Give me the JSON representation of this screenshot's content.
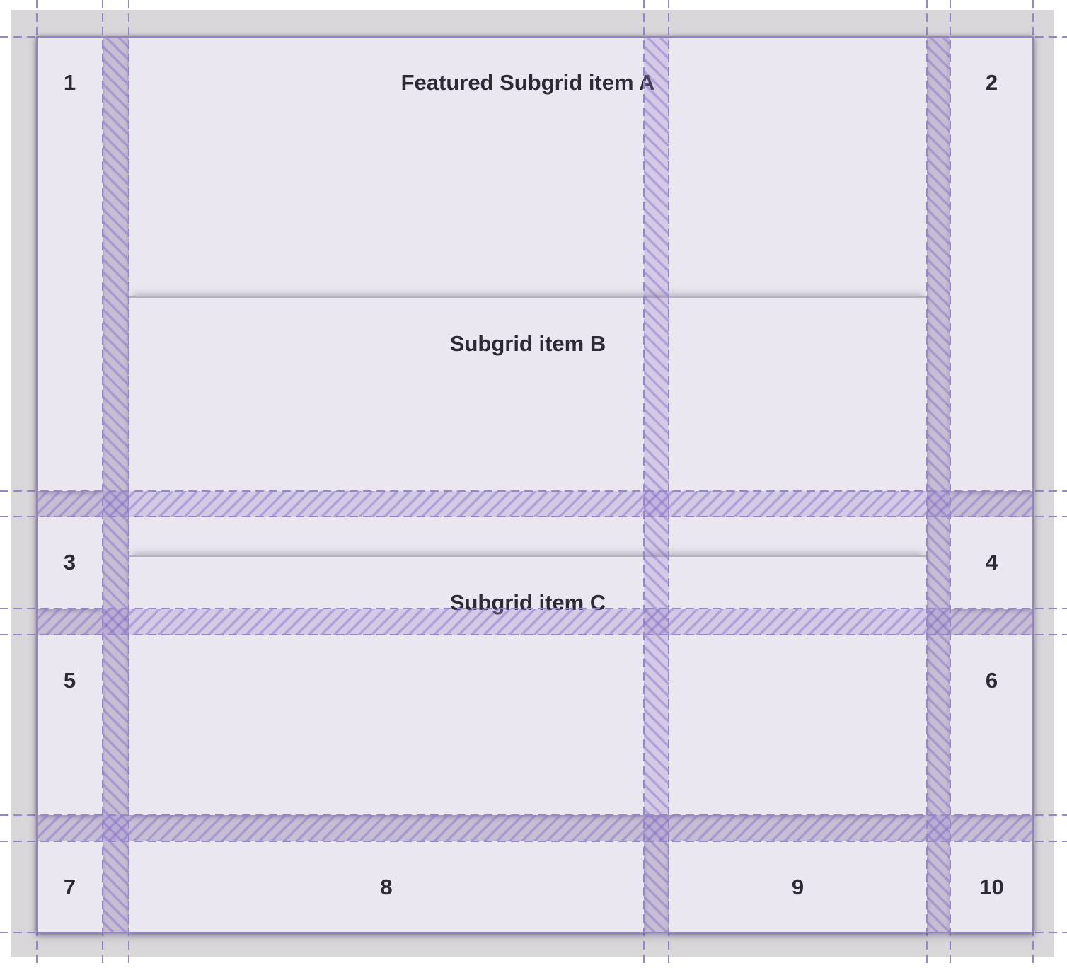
{
  "cells": [
    {
      "label": "1"
    },
    {
      "label": "2"
    },
    {
      "label": "3"
    },
    {
      "label": "4"
    },
    {
      "label": "5"
    },
    {
      "label": "6"
    },
    {
      "label": "7"
    },
    {
      "label": "8"
    },
    {
      "label": "9"
    },
    {
      "label": "10"
    }
  ],
  "subgrid": {
    "items": [
      {
        "label": "Featured Subgrid item A"
      },
      {
        "label": "Subgrid item B"
      },
      {
        "label": "Subgrid item C"
      }
    ]
  },
  "colors": {
    "page_background": "#d8d6d9",
    "cell_background": "#eae7f0",
    "text": "#2d2a35",
    "overlay_band_fill": "#927cc8",
    "overlay_dashed_line": "#9887c8",
    "grid_border": "#9581c7"
  }
}
